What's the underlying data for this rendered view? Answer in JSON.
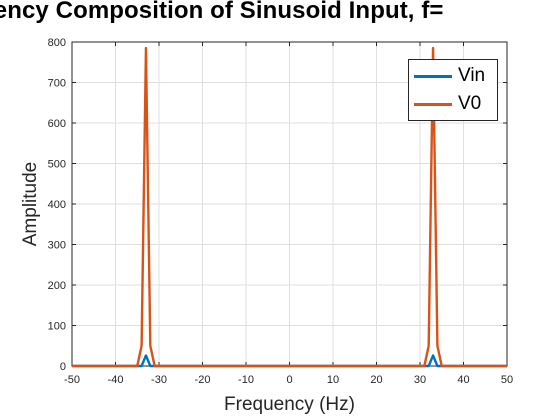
{
  "chart_data": {
    "type": "line",
    "title": "uency Composition of Sinusoid Input, f=",
    "xlabel": "Frequency (Hz)",
    "ylabel": "Amplitude",
    "xlim": [
      -50,
      50
    ],
    "ylim": [
      0,
      800
    ],
    "xticks": [
      "-50",
      "-40",
      "-30",
      "-20",
      "-10",
      "0",
      "10",
      "20",
      "30",
      "40",
      "50"
    ],
    "yticks": [
      "0",
      "100",
      "200",
      "300",
      "400",
      "500",
      "600",
      "700",
      "800"
    ],
    "grid": true,
    "legend_position": "top-right",
    "series": [
      {
        "name": "Vin",
        "color": "#0072BD",
        "x": [
          -50,
          -34,
          -33,
          -32,
          32,
          33,
          34,
          50
        ],
        "y": [
          0,
          0,
          26,
          0,
          0,
          26,
          0,
          0
        ]
      },
      {
        "name": "V0",
        "color": "#D95319",
        "x": [
          -50,
          -35,
          -34,
          -33,
          -32,
          -31,
          31,
          32,
          33,
          34,
          35,
          50
        ],
        "y": [
          0,
          0,
          50,
          785,
          50,
          0,
          0,
          50,
          785,
          50,
          0,
          0
        ]
      }
    ]
  }
}
